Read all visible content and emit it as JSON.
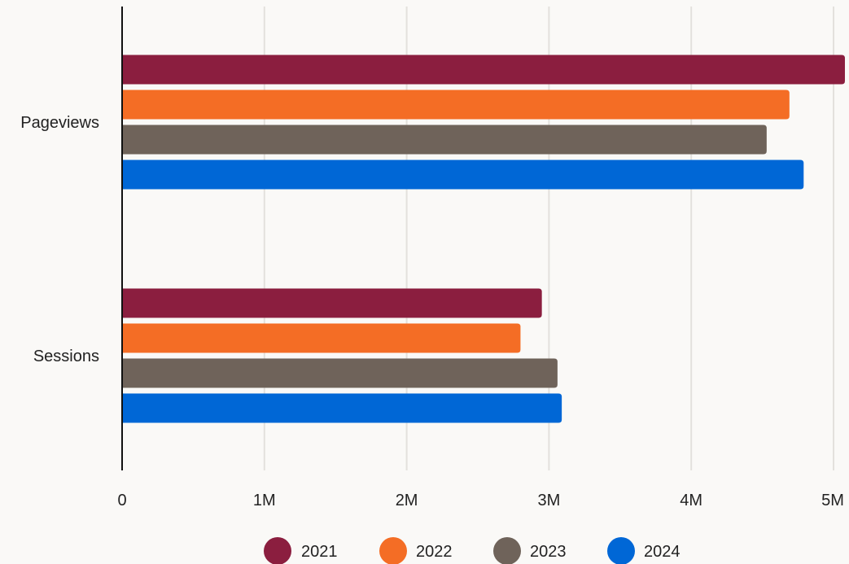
{
  "chart_data": {
    "type": "bar",
    "orientation": "horizontal",
    "categories": [
      "Pageviews",
      "Sessions"
    ],
    "series": [
      {
        "name": "2021",
        "color": "#8b1e3f",
        "values": [
          5080000,
          2950000
        ]
      },
      {
        "name": "2022",
        "color": "#f46d25",
        "values": [
          4690000,
          2800000
        ]
      },
      {
        "name": "2023",
        "color": "#6f635a",
        "values": [
          4530000,
          3060000
        ]
      },
      {
        "name": "2024",
        "color": "#0067d6",
        "values": [
          4790000,
          3090000
        ]
      }
    ],
    "xlim": [
      0,
      5000000
    ],
    "x_ticks": [
      {
        "value": 0,
        "label": "0"
      },
      {
        "value": 1000000,
        "label": "1M"
      },
      {
        "value": 2000000,
        "label": "2M"
      },
      {
        "value": 3000000,
        "label": "3M"
      },
      {
        "value": 4000000,
        "label": "4M"
      },
      {
        "value": 5000000,
        "label": "5M"
      }
    ],
    "title": "",
    "xlabel": "",
    "ylabel": "",
    "grid": true,
    "legend_position": "bottom",
    "gridline_color": "#e3e1dd",
    "axis_color": "#111111"
  }
}
